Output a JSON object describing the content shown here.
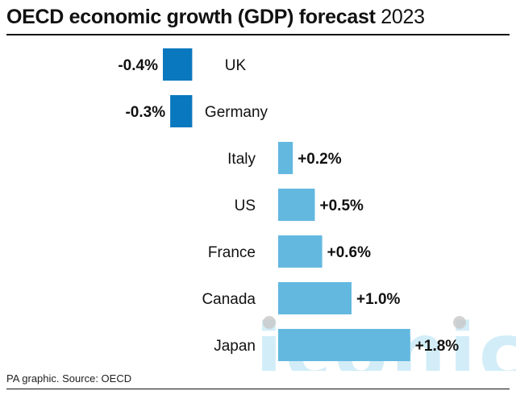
{
  "page": {
    "title_main": "OECD economic growth (GDP) forecast",
    "title_year": "2023",
    "source": "PA graphic. Source: OECD",
    "watermark": "iconic"
  },
  "colors": {
    "negative": "#0a78be",
    "positive": "#63b8e0",
    "watermark": "#bfe6f5"
  },
  "chart_data": {
    "type": "bar",
    "orientation": "horizontal",
    "title": "OECD economic growth (GDP) forecast 2023",
    "categories": [
      "UK",
      "Germany",
      "Italy",
      "US",
      "France",
      "Canada",
      "Japan"
    ],
    "values": [
      -0.4,
      -0.3,
      0.2,
      0.5,
      0.6,
      1.0,
      1.8
    ],
    "data_labels": [
      "-0.4%",
      "-0.3%",
      "+0.2%",
      "+0.5%",
      "+0.6%",
      "+1.0%",
      "+1.8%"
    ],
    "unit": "%",
    "xlim": [
      -0.4,
      1.8
    ],
    "grid": false,
    "legend": "none"
  }
}
